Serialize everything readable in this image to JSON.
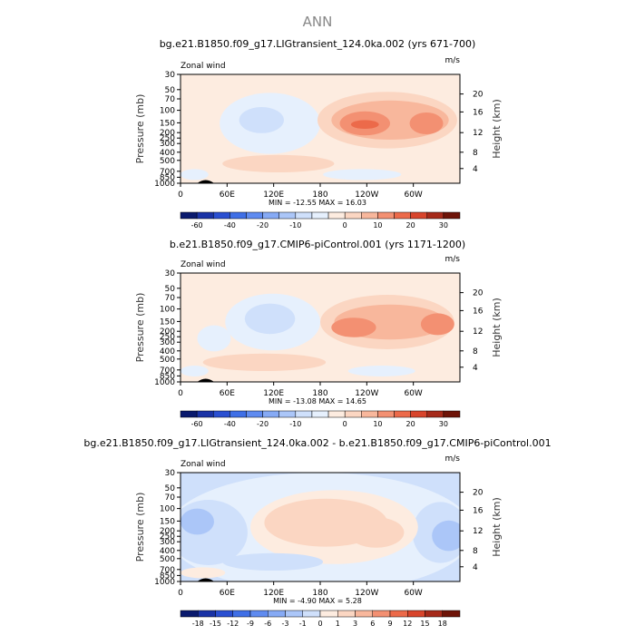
{
  "figure_title": "ANN",
  "chart_data": [
    {
      "type": "heatmap",
      "title": "bg.e21.B1850.f09_g17.LIGtransient_124.0ka.002 (yrs 671-700)",
      "variable_label": "Zonal wind",
      "units": "m/s",
      "ylabel": "Pressure (mb)",
      "y2label": "Height (km)",
      "x_ticks": [
        "0",
        "60E",
        "120E",
        "180",
        "120W",
        "60W"
      ],
      "y_ticks": [
        "30",
        "50",
        "70",
        "100",
        "150",
        "200",
        "250",
        "300",
        "400",
        "500",
        "700",
        "850",
        "1000"
      ],
      "y2_ticks": [
        "20",
        "16",
        "12",
        "8",
        "4"
      ],
      "stats": "MIN = -12.55   MAX =  16.03",
      "min": -12.55,
      "max": 16.03,
      "colorbar_ticks": [
        "-60",
        "-40",
        "-20",
        "-10",
        "0",
        "10",
        "20",
        "30"
      ],
      "levels": [
        -70,
        -60,
        -50,
        -40,
        -30,
        -20,
        -15,
        -10,
        -5,
        0,
        5,
        10,
        15,
        20,
        25,
        30
      ]
    },
    {
      "type": "heatmap",
      "title": "b.e21.B1850.f09_g17.CMIP6-piControl.001 (yrs 1171-1200)",
      "variable_label": "Zonal wind",
      "units": "m/s",
      "ylabel": "Pressure (mb)",
      "y2label": "Height (km)",
      "x_ticks": [
        "0",
        "60E",
        "120E",
        "180",
        "120W",
        "60W"
      ],
      "y_ticks": [
        "30",
        "50",
        "70",
        "100",
        "150",
        "200",
        "250",
        "300",
        "400",
        "500",
        "700",
        "850",
        "1000"
      ],
      "y2_ticks": [
        "20",
        "16",
        "12",
        "8",
        "4"
      ],
      "stats": "MIN = -13.08   MAX =  14.65",
      "min": -13.08,
      "max": 14.65,
      "colorbar_ticks": [
        "-60",
        "-40",
        "-20",
        "-10",
        "0",
        "10",
        "20",
        "30"
      ],
      "levels": [
        -70,
        -60,
        -50,
        -40,
        -30,
        -20,
        -15,
        -10,
        -5,
        0,
        5,
        10,
        15,
        20,
        25,
        30
      ]
    },
    {
      "type": "heatmap",
      "title": "bg.e21.B1850.f09_g17.LIGtransient_124.0ka.002 - b.e21.B1850.f09_g17.CMIP6-piControl.001",
      "variable_label": "Zonal wind",
      "units": "m/s",
      "ylabel": "Pressure (mb)",
      "y2label": "Height (km)",
      "x_ticks": [
        "0",
        "60E",
        "120E",
        "180",
        "120W",
        "60W"
      ],
      "y_ticks": [
        "30",
        "50",
        "70",
        "100",
        "150",
        "200",
        "250",
        "300",
        "400",
        "500",
        "700",
        "850",
        "1000"
      ],
      "y2_ticks": [
        "20",
        "16",
        "12",
        "8",
        "4"
      ],
      "stats": "MIN = -4.90   MAX =  5.28",
      "min": -4.9,
      "max": 5.28,
      "colorbar_ticks": [
        "-18",
        "-15",
        "-12",
        "-9",
        "-6",
        "-3",
        "-1",
        "0",
        "1",
        "3",
        "6",
        "9",
        "12",
        "15",
        "18"
      ],
      "levels": [
        -18,
        -15,
        -12,
        -9,
        -6,
        -3,
        -1,
        0,
        1,
        3,
        6,
        9,
        12,
        15,
        18
      ]
    }
  ],
  "colors": {
    "palette": [
      "#0a1a6e",
      "#1a33a6",
      "#2a4fd1",
      "#3f6fe6",
      "#5f8bf0",
      "#86aaf5",
      "#abc6f8",
      "#cfe0fb",
      "#e6f0fd",
      "#fdece0",
      "#fbd6c2",
      "#f8b79c",
      "#f39072",
      "#ec6a4a",
      "#d8452c",
      "#a62a1a",
      "#6e1408"
    ],
    "topography": "#000000"
  }
}
